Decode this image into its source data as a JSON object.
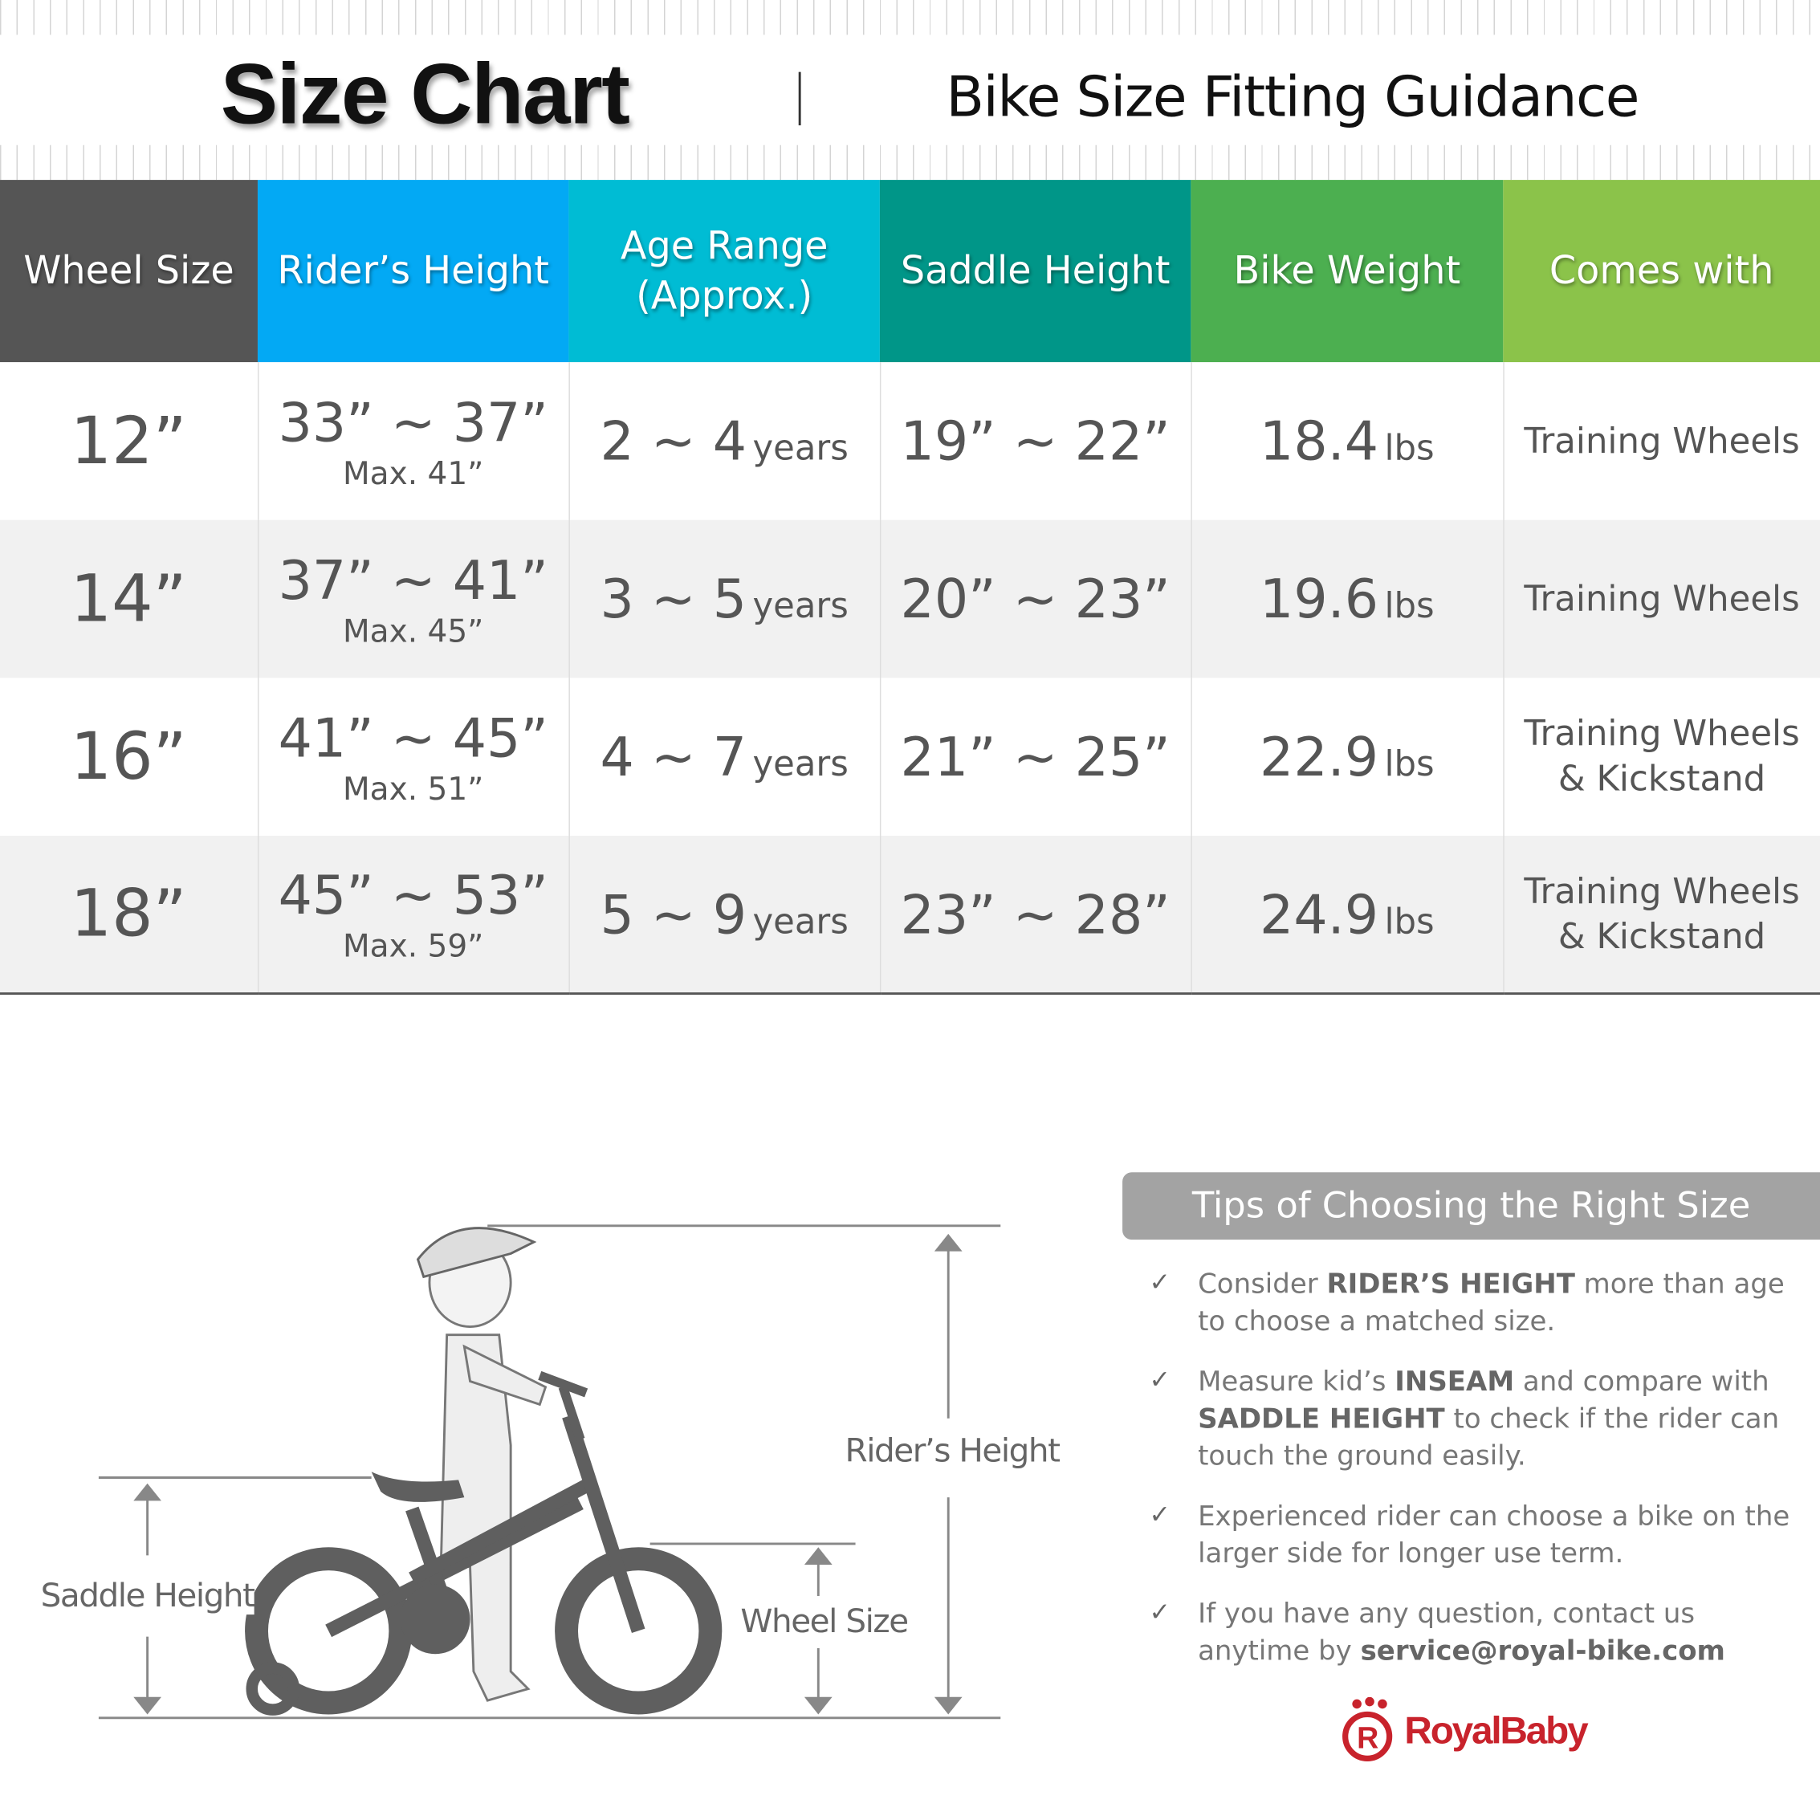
{
  "header": {
    "title": "Size Chart",
    "subtitle": "Bike Size Fitting Guidance"
  },
  "table": {
    "columns": [
      {
        "label": "Wheel Size",
        "color": "#555555"
      },
      {
        "label": "Rider’s Height",
        "color": "#03a9f4"
      },
      {
        "label": "Age Range\n(Approx.)",
        "color": "#00bcd4"
      },
      {
        "label": "Saddle Height",
        "color": "#009688"
      },
      {
        "label": "Bike Weight",
        "color": "#4caf50"
      },
      {
        "label": "Comes with",
        "color": "#8bc34a"
      }
    ],
    "rows": [
      {
        "wheel": "12”",
        "height": "33” ~ 37”",
        "max": "Max. 41”",
        "age": "2 ~ 4",
        "age_unit": "years",
        "saddle": "19” ~ 22”",
        "weight": "18.4",
        "weight_unit": "lbs",
        "comes_with": "Training Wheels",
        "comes_with_2": ""
      },
      {
        "wheel": "14”",
        "height": "37” ~ 41”",
        "max": "Max. 45”",
        "age": "3 ~ 5",
        "age_unit": "years",
        "saddle": "20” ~ 23”",
        "weight": "19.6",
        "weight_unit": "lbs",
        "comes_with": "Training Wheels",
        "comes_with_2": ""
      },
      {
        "wheel": "16”",
        "height": "41” ~ 45”",
        "max": "Max. 51”",
        "age": "4 ~ 7",
        "age_unit": "years",
        "saddle": "21” ~ 25”",
        "weight": "22.9",
        "weight_unit": "lbs",
        "comes_with": "Training Wheels",
        "comes_with_2": "& Kickstand"
      },
      {
        "wheel": "18”",
        "height": "45” ~ 53”",
        "max": "Max. 59”",
        "age": "5 ~ 9",
        "age_unit": "years",
        "saddle": "23” ~ 28”",
        "weight": "24.9",
        "weight_unit": "lbs",
        "comes_with": "Training Wheels",
        "comes_with_2": "& Kickstand"
      }
    ]
  },
  "diagram": {
    "riders_height": "Rider’s Height",
    "saddle_height": "Saddle Height",
    "wheel_size": "Wheel Size",
    "helmet_text": "RoyalBaby"
  },
  "tips": {
    "title": "Tips of Choosing the Right Size",
    "items": [
      {
        "pre": "Consider ",
        "bold": "RIDER’S HEIGHT",
        "post": " more than age to choose a matched size.",
        "bold2": "",
        "post2": ""
      },
      {
        "pre": "Measure kid’s ",
        "bold": "INSEAM",
        "post": " and compare with ",
        "bold2": "SADDLE HEIGHT",
        "post2": " to check if the rider can touch the ground easily."
      },
      {
        "pre": "Experienced rider can choose a bike on the larger side for longer use term.",
        "bold": "",
        "post": "",
        "bold2": "",
        "post2": ""
      },
      {
        "pre": "If you have any question, contact us anytime by ",
        "bold": "service@royal-bike.com",
        "post": "",
        "bold2": "",
        "post2": ""
      }
    ]
  },
  "logo": {
    "text": "RoyalBaby",
    "color": "#c8232c"
  }
}
